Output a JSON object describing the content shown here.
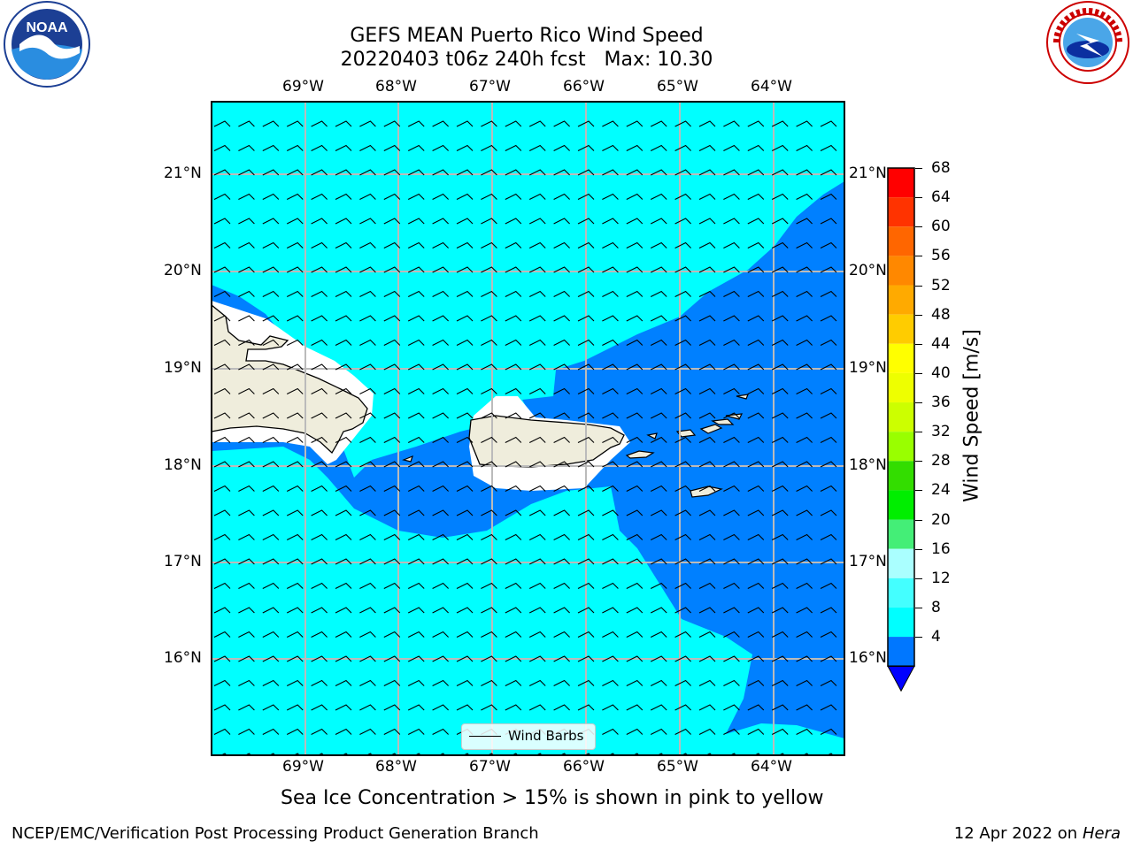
{
  "title": {
    "line1": "GEFS MEAN Puerto Rico Wind Speed",
    "line2": "20220403 t06z 240h fcst   Max: 10.30"
  },
  "lon_ticks": [
    "69°W",
    "68°W",
    "67°W",
    "66°W",
    "65°W",
    "64°W"
  ],
  "lat_ticks": [
    "21°N",
    "20°N",
    "19°N",
    "18°N",
    "17°N",
    "16°N"
  ],
  "legend": {
    "label": "Wind Barbs"
  },
  "colorbar": {
    "label": "Wind Speed [m/s]",
    "ticks": [
      "68",
      "64",
      "60",
      "56",
      "52",
      "48",
      "44",
      "40",
      "36",
      "32",
      "28",
      "24",
      "20",
      "16",
      "12",
      "8",
      "4"
    ],
    "colors": [
      "#ff0000",
      "#ff3300",
      "#ff6600",
      "#ff8800",
      "#ffaa00",
      "#ffcc00",
      "#ffff00",
      "#eeff00",
      "#ccff00",
      "#99ff00",
      "#33dd00",
      "#00ee00",
      "#44ee77",
      "#aaffff",
      "#44ffff",
      "#00ffff",
      "#0077ff"
    ],
    "under_color": "#0000ff"
  },
  "map_colors": {
    "speed_8_12": "#00ffff",
    "speed_4_8": "#0080ff",
    "land": "#efeddc",
    "grid": "#bbbbbb"
  },
  "note": "Sea Ice Concentration > 15% is shown in pink to yellow",
  "footer": {
    "left": "NCEP/EMC/Verification Post Processing Product Generation Branch",
    "date": "12 Apr 2022 on",
    "machine": "Hera"
  },
  "logos": {
    "noaa_text": "NOAA",
    "nws_text": "NATIONAL WEATHER SERVICE"
  }
}
